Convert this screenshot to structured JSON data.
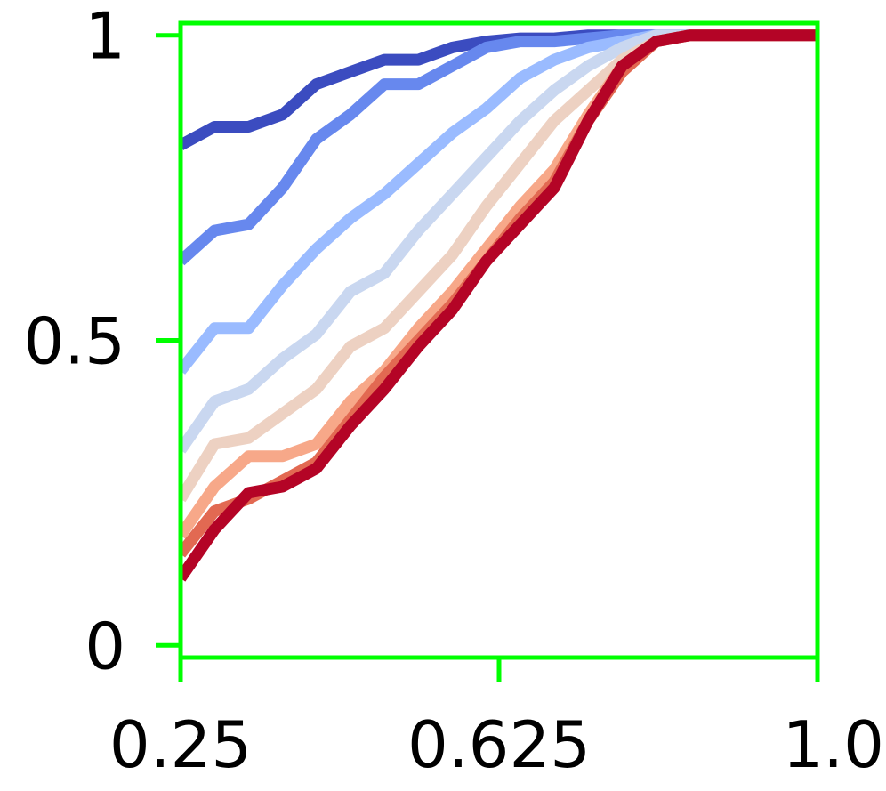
{
  "chart_data": {
    "type": "line",
    "title": "",
    "xlabel": "",
    "ylabel": "",
    "xlim": [
      0.25,
      1.0
    ],
    "ylim": [
      -0.02,
      1.02
    ],
    "x_ticks": [
      0.25,
      0.625,
      1.0
    ],
    "x_tick_labels": [
      "0.25",
      "0.625",
      "1.0"
    ],
    "y_ticks": [
      0,
      0.5,
      1
    ],
    "y_tick_labels": [
      "0",
      "0.5",
      "1"
    ],
    "grid": false,
    "legend": "none",
    "colors": {
      "frame": "#00ff00",
      "series": [
        "#3b4cc0",
        "#6788ee",
        "#9abbff",
        "#c9d7f0",
        "#edd1c2",
        "#f7a889",
        "#e26952",
        "#b40426"
      ]
    },
    "x": [
      0.25,
      0.29,
      0.33,
      0.37,
      0.41,
      0.45,
      0.49,
      0.53,
      0.57,
      0.61,
      0.65,
      0.69,
      0.73,
      0.77,
      0.81,
      0.85,
      0.89,
      0.93,
      0.97,
      1.0
    ],
    "series": [
      {
        "values": [
          0.82,
          0.85,
          0.85,
          0.87,
          0.92,
          0.94,
          0.96,
          0.96,
          0.98,
          0.99,
          0.995,
          0.995,
          1,
          1,
          1,
          1,
          1,
          1,
          1,
          1
        ]
      },
      {
        "values": [
          0.63,
          0.68,
          0.69,
          0.75,
          0.83,
          0.87,
          0.92,
          0.92,
          0.95,
          0.98,
          0.99,
          0.99,
          0.995,
          1,
          1,
          1,
          1,
          1,
          1,
          1
        ]
      },
      {
        "values": [
          0.45,
          0.52,
          0.52,
          0.59,
          0.65,
          0.7,
          0.74,
          0.79,
          0.84,
          0.88,
          0.93,
          0.96,
          0.98,
          0.99,
          1,
          1,
          1,
          1,
          1,
          1
        ]
      },
      {
        "values": [
          0.32,
          0.4,
          0.42,
          0.47,
          0.51,
          0.58,
          0.61,
          0.68,
          0.74,
          0.8,
          0.86,
          0.91,
          0.95,
          0.98,
          1,
          1,
          1,
          1,
          1,
          1
        ]
      },
      {
        "values": [
          0.24,
          0.33,
          0.34,
          0.38,
          0.42,
          0.49,
          0.52,
          0.58,
          0.64,
          0.72,
          0.79,
          0.86,
          0.91,
          0.96,
          0.99,
          1,
          1,
          1,
          1,
          1
        ]
      },
      {
        "values": [
          0.18,
          0.26,
          0.31,
          0.31,
          0.33,
          0.4,
          0.45,
          0.52,
          0.58,
          0.65,
          0.72,
          0.78,
          0.87,
          0.95,
          0.99,
          1,
          1,
          1,
          1,
          1
        ]
      },
      {
        "values": [
          0.15,
          0.22,
          0.24,
          0.27,
          0.3,
          0.37,
          0.44,
          0.5,
          0.56,
          0.63,
          0.7,
          0.76,
          0.86,
          0.94,
          0.99,
          1,
          1,
          1,
          1,
          1
        ]
      },
      {
        "values": [
          0.11,
          0.19,
          0.25,
          0.26,
          0.29,
          0.36,
          0.42,
          0.49,
          0.55,
          0.63,
          0.69,
          0.75,
          0.86,
          0.95,
          0.99,
          1,
          1,
          1,
          1,
          1
        ]
      }
    ]
  }
}
